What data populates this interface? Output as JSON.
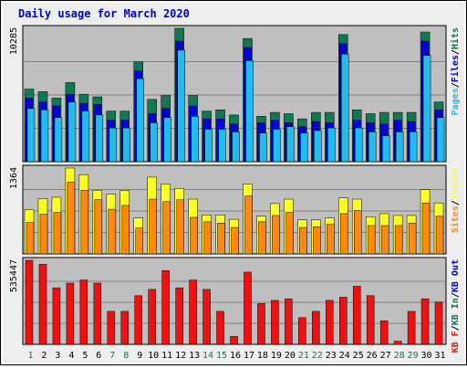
{
  "colors": {
    "frame_bg": "#eeeeee",
    "panel_bg": "#bfbfbf",
    "title": "#0000cc",
    "hits": "#117755",
    "files": "#0000dd",
    "pages": "#22bbee",
    "visits": "#ffff22",
    "sites": "#ff8811",
    "kb_in": "#117755",
    "kb_out": "#0000dd",
    "kbf": "#ee1111",
    "weekend_day": "#117755",
    "weekday": "#000000"
  },
  "chart_data": {
    "type": "bar",
    "title": "Daily usage for March 2020",
    "x": [
      "1",
      "2",
      "3",
      "4",
      "5",
      "6",
      "7",
      "8",
      "9",
      "10",
      "11",
      "12",
      "13",
      "14",
      "15",
      "16",
      "17",
      "18",
      "19",
      "20",
      "21",
      "22",
      "23",
      "24",
      "25",
      "26",
      "27",
      "28",
      "29",
      "30",
      "31"
    ],
    "weekend_days": [
      "1",
      "7",
      "8",
      "14",
      "15",
      "21",
      "22",
      "28",
      "29"
    ],
    "panels": [
      {
        "ymax_label": "10285",
        "ymax": 10285,
        "legend": [
          {
            "text": "Pages",
            "color": "#22bbee"
          },
          {
            "text": "/",
            "color": "#000000"
          },
          {
            "text": "Files",
            "color": "#0000dd"
          },
          {
            "text": "/",
            "color": "#000000"
          },
          {
            "text": "Hits",
            "color": "#117755"
          }
        ],
        "series": [
          {
            "name": "Hits",
            "color": "#117755",
            "values": [
              5600,
              5400,
              4900,
              6100,
              5200,
              5000,
              3900,
              3900,
              7700,
              4800,
              5100,
              10285,
              5100,
              3900,
              4000,
              3600,
              9500,
              3500,
              3800,
              3700,
              3300,
              3800,
              3800,
              9800,
              4000,
              3700,
              3800,
              3800,
              3800,
              10000,
              4600
            ]
          },
          {
            "name": "Files",
            "color": "#0000dd",
            "values": [
              4900,
              4600,
              4300,
              5200,
              4500,
              4400,
              3200,
              3200,
              7000,
              3700,
              4100,
              9300,
              4300,
              3300,
              3300,
              2900,
              8800,
              3000,
              3200,
              3000,
              2700,
              3100,
              3000,
              9100,
              3200,
              3000,
              2900,
              3200,
              3100,
              9300,
              4000
            ]
          },
          {
            "name": "Pages",
            "color": "#22bbee",
            "values": [
              4100,
              4000,
              3400,
              4600,
              3900,
              3600,
              2600,
              2600,
              6400,
              3000,
              3400,
              8600,
              3500,
              2500,
              2500,
              2300,
              7800,
              2200,
              2500,
              2700,
              2200,
              2400,
              2600,
              8300,
              2600,
              2300,
              2000,
              2300,
              2300,
              8200,
              3400
            ]
          }
        ]
      },
      {
        "ymax_label": "1364",
        "ymax": 1364,
        "legend": [
          {
            "text": "Sites",
            "color": "#ff8811"
          },
          {
            "text": "/",
            "color": "#000000"
          },
          {
            "text": "Visits",
            "color": "#ffff22"
          }
        ],
        "series": [
          {
            "name": "Visits",
            "color": "#ffff22",
            "values": [
              700,
              880,
              900,
              1364,
              1260,
              1010,
              950,
              1010,
              570,
              1220,
              1110,
              1040,
              870,
              620,
              620,
              550,
              1110,
              600,
              800,
              870,
              540,
              540,
              570,
              890,
              870,
              590,
              640,
              610,
              610,
              1020,
              810
            ]
          },
          {
            "name": "Sites",
            "color": "#ff8811",
            "values": [
              500,
              630,
              660,
              1140,
              1010,
              860,
              710,
              770,
              410,
              870,
              830,
              860,
              580,
              510,
              490,
              420,
              920,
              510,
              610,
              660,
              420,
              430,
              470,
              640,
              690,
              450,
              450,
              450,
              490,
              810,
              600
            ]
          }
        ]
      },
      {
        "ymax_label": "535447",
        "ymax": 535447,
        "legend": [
          {
            "text": "KB F",
            "color": "#ee1111"
          },
          {
            "text": "/",
            "color": "#000000"
          },
          {
            "text": "KB In",
            "color": "#117755"
          },
          {
            "text": "/",
            "color": "#000000"
          },
          {
            "text": "KB Out",
            "color": "#0000dd"
          }
        ],
        "series": [
          {
            "name": "KB F",
            "color": "#ee1111",
            "values": [
              535447,
              510000,
              360000,
              390000,
              410000,
              390000,
              210000,
              210000,
              310000,
              350000,
              470000,
              360000,
              410000,
              350000,
              210000,
              50000,
              460000,
              260000,
              280000,
              290000,
              170000,
              210000,
              280000,
              300000,
              370000,
              310000,
              150000,
              20000,
              210000,
              290000,
              270000
            ]
          }
        ]
      }
    ]
  }
}
